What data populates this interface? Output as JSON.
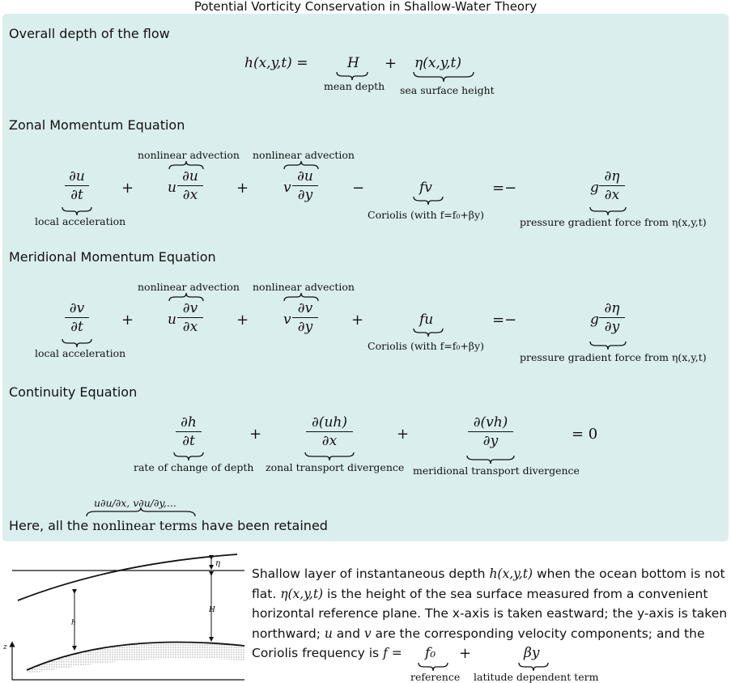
{
  "title": "Potential Vorticity Conservation in Shallow-Water Theory",
  "sections": {
    "depth": {
      "heading": "Overall depth of the flow",
      "lhs": "h(x,y,t) =",
      "term1": "H",
      "term1_label": "mean depth",
      "plus": "+",
      "term2": "η(x,y,t)",
      "term2_label": "sea surface height"
    },
    "zonal": {
      "heading": "Zonal Momentum Equation",
      "t1_num": "∂u",
      "t1_den": "∂t",
      "t1_label": "local acceleration",
      "op1": "+",
      "t2_coef": "u",
      "t2_num": "∂u",
      "t2_den": "∂x",
      "t2_label": "nonlinear advection",
      "op2": "+",
      "t3_coef": "v",
      "t3_num": "∂u",
      "t3_den": "∂y",
      "t3_label": "nonlinear advection",
      "op3": "−",
      "t4": "fv",
      "t4_label": "Coriolis (with f=f₀+βy)",
      "eq": "=−",
      "t5_coef": "g",
      "t5_num": "∂η",
      "t5_den": "∂x",
      "t5_label": "pressure gradient force from η(x,y,t)"
    },
    "meridional": {
      "heading": "Meridional Momentum Equation",
      "t1_num": "∂v",
      "t1_den": "∂t",
      "t1_label": "local acceleration",
      "op1": "+",
      "t2_coef": "u",
      "t2_num": "∂v",
      "t2_den": "∂x",
      "t2_label": "nonlinear advection",
      "op2": "+",
      "t3_coef": "v",
      "t3_num": "∂v",
      "t3_den": "∂y",
      "t3_label": "nonlinear advection",
      "op3": "+",
      "t4": "fu",
      "t4_label": "Coriolis (with f=f₀+βy)",
      "eq": "=−",
      "t5_coef": "g",
      "t5_num": "∂η",
      "t5_den": "∂y",
      "t5_label": "pressure gradient force from η(x,y,t)"
    },
    "continuity": {
      "heading": "Continuity Equation",
      "t1_num": "∂h",
      "t1_den": "∂t",
      "t1_label": "rate of change of depth",
      "op1": "+",
      "t2_num": "∂(uh)",
      "t2_den": "∂x",
      "t2_label": "zonal transport divergence",
      "op2": "+",
      "t3_num": "∂(vh)",
      "t3_den": "∂y",
      "t3_label": "meridional transport divergence",
      "rhs": "= 0"
    },
    "note": {
      "prefix": "Here, all the ",
      "braced": "nonlinear terms",
      "suffix": " have been retained",
      "over_label": "u∂u/∂x, v∂u/∂y,..."
    }
  },
  "figure": {
    "label_eta": "η",
    "label_H": "H",
    "label_h": "h",
    "label_z": "z"
  },
  "caption": {
    "p1": "Shallow layer of instantaneous depth ",
    "m1": "h(x,y,t)",
    "p2": " when the ocean bottom is not flat. ",
    "m2": "η(x,y,t)",
    "p3": " is the height of the sea surface measured from a convenient horizontal reference plane. The x-axis is taken eastward; the y-axis is taken northward; ",
    "m3": "u",
    "p4": " and ",
    "m4": "v",
    "p5": " are the corresponding velocity components; and the Coriolis frequency is ",
    "m5": "f =",
    "t1": "f₀",
    "t1_label": "reference",
    "plus": "+",
    "t2": "βy",
    "t2_label": "latitude dependent term"
  }
}
